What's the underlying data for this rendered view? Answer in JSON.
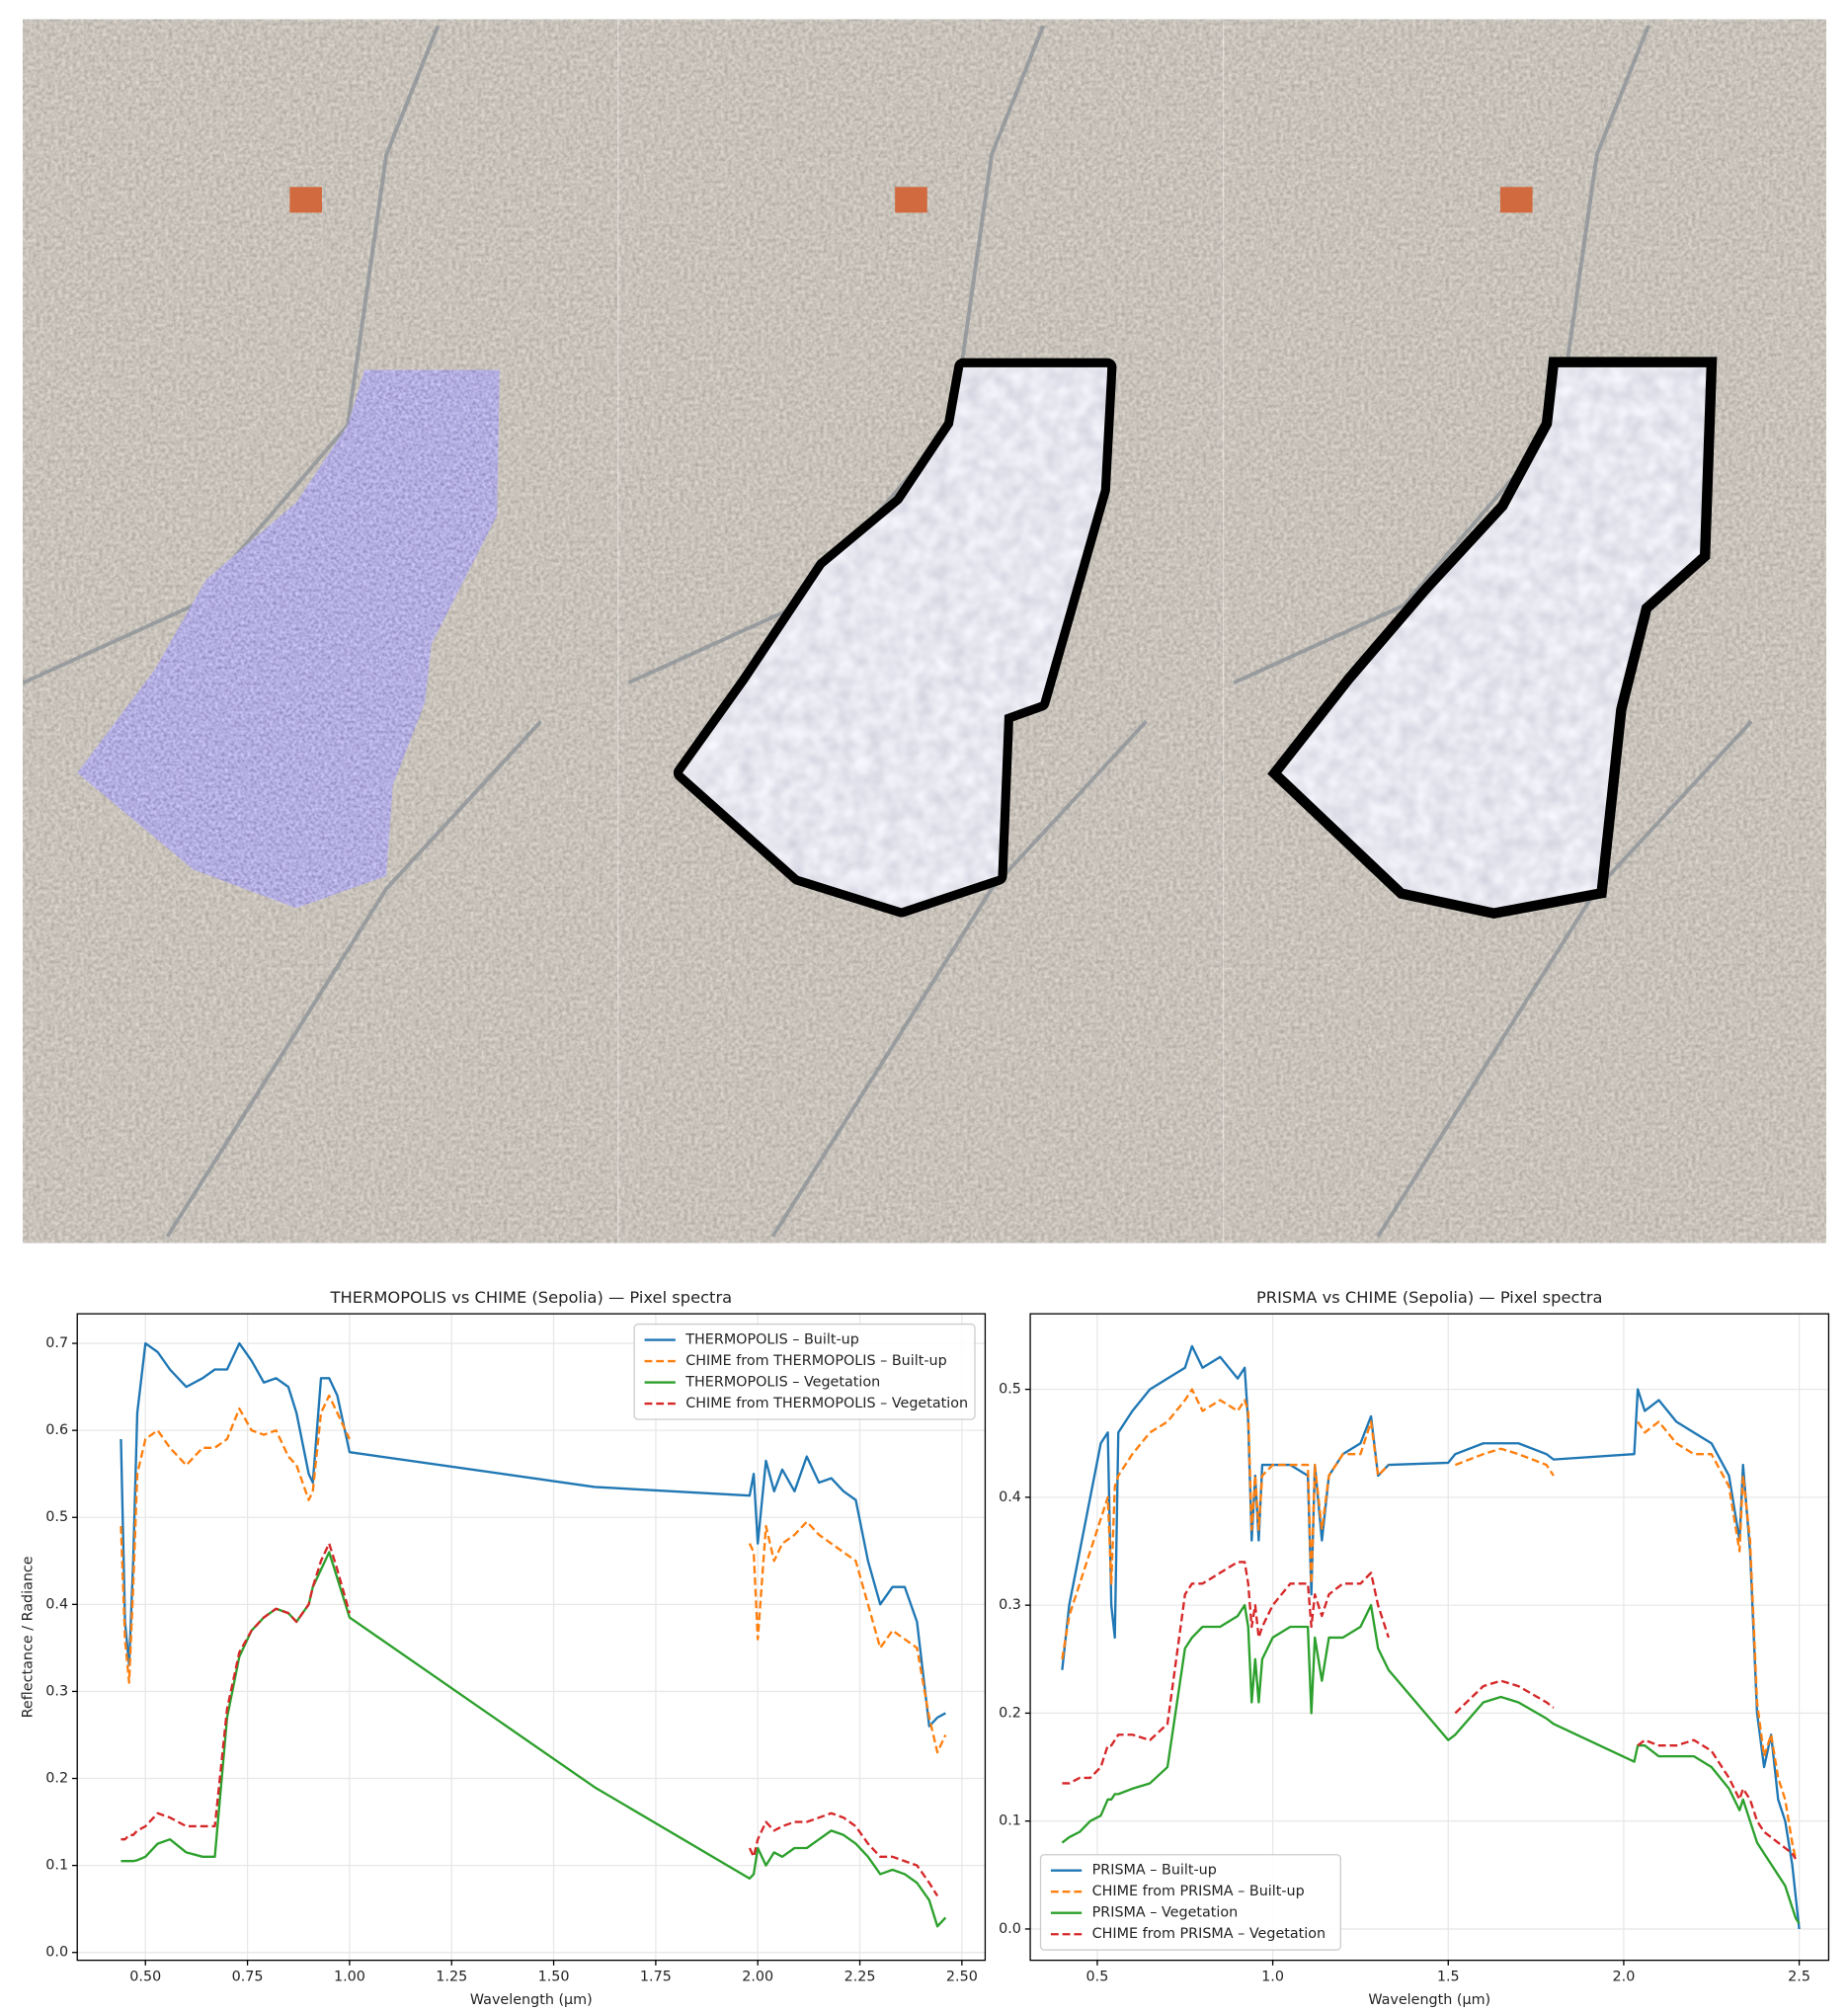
{
  "chart_data": [
    {
      "type": "line",
      "title": "THERMOPOLIS vs CHIME (Sepolia) — Pixel spectra",
      "xlabel": "Wavelength (μm)",
      "ylabel": "Reflectance / Radiance",
      "xlim": [
        0.333,
        2.557
      ],
      "ylim": [
        -0.009,
        0.734
      ],
      "xticks": [
        {
          "value": 0.5,
          "label": "0.50"
        },
        0.75,
        {
          "value": 1,
          "label": "1.00"
        },
        1.25,
        {
          "value": 1.5,
          "label": "1.50"
        },
        1.75,
        {
          "value": 2,
          "label": "2.00"
        },
        2.25,
        {
          "value": 2.5,
          "label": "2.50"
        }
      ],
      "yticks": [
        {
          "value": 0,
          "label": "0.0"
        },
        0.1,
        0.2,
        0.3,
        0.4,
        0.5,
        0.6,
        0.7
      ],
      "grid": true,
      "legend": "upper right",
      "x": [
        0.44,
        0.45,
        0.46,
        0.47,
        0.48,
        0.5,
        0.53,
        0.56,
        0.6,
        0.64,
        0.67,
        0.7,
        0.73,
        0.76,
        0.79,
        0.82,
        0.85,
        0.87,
        0.9,
        0.91,
        0.93,
        0.95,
        0.97,
        1.0,
        1.6,
        1.98,
        1.99,
        2.0,
        2.02,
        2.04,
        2.06,
        2.09,
        2.12,
        2.15,
        2.18,
        2.21,
        2.24,
        2.27,
        2.3,
        2.33,
        2.36,
        2.39,
        2.42,
        2.44,
        2.46
      ],
      "series": [
        {
          "name": "THERMOPOLIS – Built-up",
          "color": "#1f77b4",
          "linestyle": "solid",
          "values": [
            0.59,
            0.38,
            0.33,
            0.45,
            0.62,
            0.7,
            0.69,
            0.67,
            0.65,
            0.66,
            0.67,
            0.67,
            0.7,
            0.68,
            0.655,
            0.66,
            0.65,
            0.62,
            0.55,
            0.54,
            0.66,
            0.66,
            0.64,
            0.575,
            0.535,
            0.525,
            0.55,
            0.47,
            0.565,
            0.53,
            0.555,
            0.53,
            0.57,
            0.54,
            0.545,
            0.53,
            0.52,
            0.45,
            0.4,
            0.42,
            0.42,
            0.38,
            0.26,
            0.27,
            0.275
          ]
        },
        {
          "name": "CHIME from THERMOPOLIS – Built-up",
          "color": "#ff7f0e",
          "linestyle": "dashed",
          "values": [
            0.49,
            0.36,
            0.31,
            0.42,
            0.55,
            0.59,
            0.6,
            0.58,
            0.56,
            0.58,
            0.58,
            0.59,
            0.625,
            0.6,
            0.595,
            0.6,
            0.57,
            0.56,
            0.52,
            0.53,
            0.62,
            0.64,
            0.62,
            0.59,
            null,
            0.47,
            0.46,
            0.36,
            0.49,
            0.45,
            0.47,
            0.48,
            0.495,
            0.48,
            0.47,
            0.46,
            0.45,
            0.4,
            0.35,
            0.37,
            0.36,
            0.35,
            0.27,
            0.23,
            0.25
          ]
        },
        {
          "name": "THERMOPOLIS – Vegetation",
          "color": "#2ca02c",
          "linestyle": "solid",
          "values": [
            0.105,
            0.105,
            0.105,
            0.105,
            0.106,
            0.11,
            0.125,
            0.13,
            0.115,
            0.11,
            0.11,
            0.27,
            0.34,
            0.37,
            0.385,
            0.395,
            0.39,
            0.38,
            0.4,
            0.42,
            0.44,
            0.46,
            0.43,
            0.385,
            0.19,
            0.085,
            0.09,
            0.12,
            0.1,
            0.115,
            0.11,
            0.12,
            0.12,
            0.13,
            0.14,
            0.135,
            0.125,
            0.11,
            0.09,
            0.095,
            0.09,
            0.08,
            0.06,
            0.03,
            0.04
          ]
        },
        {
          "name": "CHIME from THERMOPOLIS – Vegetation",
          "color": "#d62728",
          "linestyle": "dashed",
          "values": [
            0.13,
            0.13,
            0.135,
            0.135,
            0.14,
            0.145,
            0.16,
            0.155,
            0.145,
            0.145,
            0.145,
            0.28,
            0.345,
            0.37,
            0.385,
            0.395,
            0.39,
            0.38,
            0.4,
            0.42,
            0.45,
            0.47,
            0.44,
            0.39,
            null,
            0.12,
            0.11,
            0.13,
            0.15,
            0.14,
            0.145,
            0.15,
            0.15,
            0.155,
            0.16,
            0.155,
            0.145,
            0.125,
            0.11,
            0.11,
            0.105,
            0.1,
            0.08,
            0.065,
            null
          ]
        }
      ]
    },
    {
      "type": "line",
      "title": "PRISMA vs CHIME (Sepolia) — Pixel spectra",
      "xlabel": "Wavelength (μm)",
      "xlim": [
        0.309,
        2.584
      ],
      "ylim": [
        -0.029,
        0.57
      ],
      "xticks": [
        0.5,
        {
          "value": 1,
          "label": "1.0"
        },
        1.5,
        {
          "value": 2,
          "label": "2.0"
        },
        2.5
      ],
      "yticks": [
        {
          "value": 0,
          "label": "0.0"
        },
        0.1,
        0.2,
        0.3,
        0.4,
        0.5
      ],
      "grid": true,
      "legend": "lower left",
      "x": [
        0.4,
        0.42,
        0.45,
        0.48,
        0.51,
        0.53,
        0.54,
        0.55,
        0.56,
        0.6,
        0.65,
        0.7,
        0.75,
        0.77,
        0.8,
        0.85,
        0.9,
        0.92,
        0.93,
        0.94,
        0.95,
        0.96,
        0.97,
        1.0,
        1.05,
        1.1,
        1.11,
        1.12,
        1.14,
        1.16,
        1.2,
        1.25,
        1.28,
        1.3,
        1.33,
        1.5,
        1.52,
        1.6,
        1.65,
        1.7,
        1.78,
        1.8,
        2.03,
        2.04,
        2.06,
        2.1,
        2.15,
        2.2,
        2.25,
        2.3,
        2.33,
        2.34,
        2.36,
        2.38,
        2.4,
        2.42,
        2.44,
        2.46,
        2.48,
        2.49,
        2.5
      ],
      "series": [
        {
          "name": "PRISMA – Built-up",
          "color": "#1f77b4",
          "linestyle": "solid",
          "values": [
            0.24,
            0.3,
            0.35,
            0.4,
            0.45,
            0.46,
            0.3,
            0.27,
            0.46,
            0.48,
            0.5,
            0.51,
            0.52,
            0.54,
            0.52,
            0.53,
            0.51,
            0.52,
            0.47,
            0.36,
            0.42,
            0.36,
            0.43,
            0.43,
            0.43,
            0.42,
            0.31,
            0.43,
            0.36,
            0.42,
            0.44,
            0.45,
            0.475,
            0.42,
            0.43,
            0.432,
            0.44,
            0.45,
            0.45,
            0.45,
            0.44,
            0.435,
            0.44,
            0.5,
            0.48,
            0.49,
            0.47,
            0.46,
            0.45,
            0.42,
            0.36,
            0.43,
            0.35,
            0.2,
            0.15,
            0.18,
            0.12,
            0.1,
            0.06,
            0.03,
            0
          ]
        },
        {
          "name": "CHIME from PRISMA – Built-up",
          "color": "#ff7f0e",
          "linestyle": "dashed",
          "values": [
            0.25,
            0.29,
            0.32,
            0.35,
            0.38,
            0.4,
            0.32,
            0.41,
            0.42,
            0.44,
            0.46,
            0.47,
            0.49,
            0.5,
            0.48,
            0.49,
            0.48,
            0.49,
            0.48,
            0.37,
            0.42,
            0.37,
            0.42,
            0.43,
            0.43,
            0.43,
            0.32,
            0.43,
            0.37,
            0.42,
            0.44,
            0.44,
            0.47,
            0.42,
            0.43,
            null,
            0.43,
            0.44,
            0.445,
            0.44,
            0.43,
            0.42,
            null,
            0.47,
            0.46,
            0.47,
            0.45,
            0.44,
            0.44,
            0.41,
            0.35,
            0.42,
            0.36,
            0.21,
            0.16,
            0.18,
            0.14,
            0.12,
            0.08,
            0.065,
            null
          ]
        },
        {
          "name": "PRISMA – Vegetation",
          "color": "#2ca02c",
          "linestyle": "solid",
          "values": [
            0.08,
            0.085,
            0.09,
            0.1,
            0.105,
            0.12,
            0.12,
            0.125,
            0.125,
            0.13,
            0.135,
            0.15,
            0.26,
            0.27,
            0.28,
            0.28,
            0.29,
            0.3,
            0.28,
            0.21,
            0.25,
            0.21,
            0.25,
            0.27,
            0.28,
            0.28,
            0.2,
            0.27,
            0.23,
            0.27,
            0.27,
            0.28,
            0.3,
            0.26,
            0.24,
            0.175,
            0.18,
            0.21,
            0.215,
            0.21,
            0.195,
            0.19,
            0.155,
            0.17,
            0.17,
            0.16,
            0.16,
            0.16,
            0.15,
            0.13,
            0.11,
            0.12,
            0.1,
            0.08,
            0.07,
            0.06,
            0.05,
            0.04,
            0.02,
            0.01,
            0.005
          ]
        },
        {
          "name": "CHIME from PRISMA – Vegetation",
          "color": "#d62728",
          "linestyle": "dashed",
          "values": [
            0.135,
            0.135,
            0.14,
            0.14,
            0.15,
            0.17,
            0.17,
            0.175,
            0.18,
            0.18,
            0.175,
            0.19,
            0.31,
            0.32,
            0.32,
            0.33,
            0.34,
            0.34,
            0.32,
            0.28,
            0.3,
            0.27,
            0.28,
            0.3,
            0.32,
            0.32,
            0.28,
            0.31,
            0.29,
            0.31,
            0.32,
            0.32,
            0.33,
            0.3,
            0.27,
            null,
            0.2,
            0.225,
            0.23,
            0.225,
            0.21,
            0.205,
            null,
            0.17,
            0.175,
            0.17,
            0.17,
            0.175,
            0.165,
            0.14,
            0.12,
            0.13,
            0.12,
            0.1,
            0.09,
            0.085,
            0.08,
            0.075,
            0.07,
            0.065,
            null
          ]
        }
      ]
    }
  ]
}
